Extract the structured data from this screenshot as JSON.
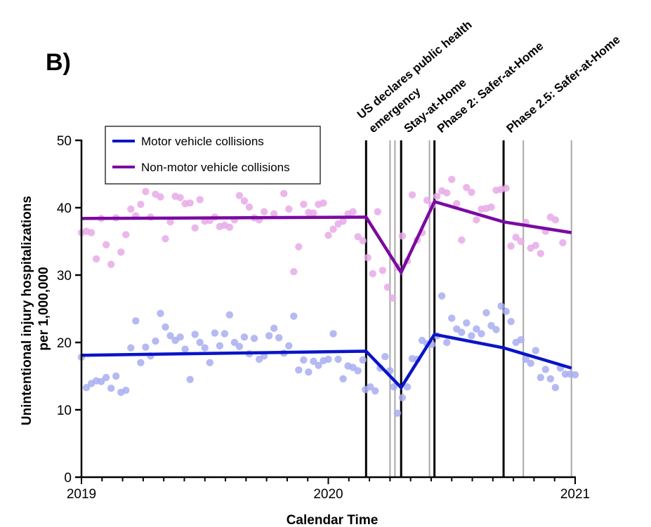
{
  "chart_data": {
    "type": "scatter",
    "panel_label": "B)",
    "title": "",
    "xlabel": "Calendar Time",
    "ylabel_line1": "Unintentional injury hospitalizations",
    "ylabel_line2": "per 1,000,000",
    "xlim": [
      2019.0,
      2021.0
    ],
    "ylim": [
      0,
      50
    ],
    "x_ticks": [
      2019,
      2020,
      2021
    ],
    "x_tick_labels": [
      "2019",
      "2020",
      "2021"
    ],
    "y_ticks": [
      0,
      10,
      20,
      30,
      40,
      50
    ],
    "y_tick_labels": [
      "0",
      "10",
      "20",
      "30",
      "40",
      "50"
    ],
    "grid": false,
    "legend_position": "top-left",
    "event_lines": [
      {
        "x": 2020.153,
        "label_lines": [
          "US declares public health",
          "emergency"
        ],
        "kind": "major"
      },
      {
        "x": 2020.295,
        "label_lines": [
          "Stay-at-Home"
        ],
        "kind": "major"
      },
      {
        "x": 2020.43,
        "label_lines": [
          "Phase 2: Safer-at-Home"
        ],
        "kind": "major"
      },
      {
        "x": 2020.71,
        "label_lines": [
          "Phase 2.5: Safer-at-Home"
        ],
        "kind": "major"
      },
      {
        "x": 2020.25,
        "kind": "minor"
      },
      {
        "x": 2020.27,
        "kind": "minor"
      },
      {
        "x": 2020.41,
        "kind": "minor"
      },
      {
        "x": 2020.79,
        "kind": "minor"
      },
      {
        "x": 2020.985,
        "kind": "minor"
      }
    ],
    "series": [
      {
        "name": "Motor vehicle collisions",
        "color": "#0a14c8",
        "point_color": "#a8aef0",
        "trend": {
          "x": [
            2019.0,
            2020.153,
            2020.295,
            2020.43,
            2020.71,
            2020.985
          ],
          "y": [
            18.1,
            18.7,
            13.3,
            21.2,
            19.2,
            16.2
          ]
        },
        "points": [
          [
            2019.0,
            17.8
          ],
          [
            2019.02,
            13.3
          ],
          [
            2019.04,
            13.9
          ],
          [
            2019.06,
            14.3
          ],
          [
            2019.08,
            14.2
          ],
          [
            2019.1,
            14.8
          ],
          [
            2019.12,
            13.2
          ],
          [
            2019.14,
            15.0
          ],
          [
            2019.16,
            12.6
          ],
          [
            2019.18,
            12.9
          ],
          [
            2019.2,
            19.2
          ],
          [
            2019.22,
            23.2
          ],
          [
            2019.24,
            17.0
          ],
          [
            2019.26,
            19.3
          ],
          [
            2019.28,
            18.0
          ],
          [
            2019.3,
            20.2
          ],
          [
            2019.32,
            24.3
          ],
          [
            2019.34,
            22.3
          ],
          [
            2019.36,
            21.0
          ],
          [
            2019.38,
            20.3
          ],
          [
            2019.4,
            20.8
          ],
          [
            2019.42,
            19.0
          ],
          [
            2019.44,
            14.5
          ],
          [
            2019.46,
            21.2
          ],
          [
            2019.48,
            20.0
          ],
          [
            2019.5,
            19.2
          ],
          [
            2019.52,
            17.0
          ],
          [
            2019.54,
            21.4
          ],
          [
            2019.56,
            19.5
          ],
          [
            2019.58,
            21.3
          ],
          [
            2019.6,
            24.1
          ],
          [
            2019.62,
            20.0
          ],
          [
            2019.64,
            19.4
          ],
          [
            2019.66,
            20.8
          ],
          [
            2019.68,
            18.3
          ],
          [
            2019.7,
            20.6
          ],
          [
            2019.72,
            17.5
          ],
          [
            2019.74,
            18.0
          ],
          [
            2019.76,
            21.0
          ],
          [
            2019.78,
            22.1
          ],
          [
            2019.8,
            20.7
          ],
          [
            2019.82,
            18.4
          ],
          [
            2019.84,
            19.5
          ],
          [
            2019.86,
            23.9
          ],
          [
            2019.88,
            15.9
          ],
          [
            2019.9,
            17.4
          ],
          [
            2019.92,
            15.6
          ],
          [
            2019.94,
            17.2
          ],
          [
            2019.96,
            16.6
          ],
          [
            2019.98,
            17.3
          ],
          [
            2020.0,
            17.5
          ],
          [
            2020.02,
            21.3
          ],
          [
            2020.04,
            17.5
          ],
          [
            2020.06,
            14.6
          ],
          [
            2020.08,
            16.5
          ],
          [
            2020.1,
            16.3
          ],
          [
            2020.12,
            15.8
          ],
          [
            2020.14,
            17.4
          ],
          [
            2020.15,
            13.0
          ],
          [
            2020.17,
            13.4
          ],
          [
            2020.19,
            12.8
          ],
          [
            2020.21,
            16.2
          ],
          [
            2020.23,
            17.9
          ],
          [
            2020.25,
            15.8
          ],
          [
            2020.265,
            13.4
          ],
          [
            2020.28,
            9.5
          ],
          [
            2020.3,
            11.8
          ],
          [
            2020.32,
            13.4
          ],
          [
            2020.34,
            17.6
          ],
          [
            2020.36,
            17.5
          ],
          [
            2020.38,
            20.3
          ],
          [
            2020.4,
            19.8
          ],
          [
            2020.42,
            19.7
          ],
          [
            2020.44,
            21.0
          ],
          [
            2020.46,
            26.9
          ],
          [
            2020.48,
            20.0
          ],
          [
            2020.5,
            23.6
          ],
          [
            2020.52,
            22.0
          ],
          [
            2020.54,
            21.5
          ],
          [
            2020.56,
            22.9
          ],
          [
            2020.58,
            21.0
          ],
          [
            2020.6,
            22.0
          ],
          [
            2020.62,
            21.3
          ],
          [
            2020.64,
            24.4
          ],
          [
            2020.66,
            22.5
          ],
          [
            2020.68,
            21.9
          ],
          [
            2020.7,
            25.4
          ],
          [
            2020.72,
            24.6
          ],
          [
            2020.74,
            23.1
          ],
          [
            2020.76,
            20.0
          ],
          [
            2020.78,
            20.4
          ],
          [
            2020.8,
            17.5
          ],
          [
            2020.82,
            16.9
          ],
          [
            2020.84,
            18.8
          ],
          [
            2020.86,
            14.8
          ],
          [
            2020.88,
            16.0
          ],
          [
            2020.9,
            14.6
          ],
          [
            2020.92,
            13.3
          ],
          [
            2020.94,
            16.2
          ],
          [
            2020.96,
            15.3
          ],
          [
            2020.98,
            15.3
          ],
          [
            2021.0,
            15.2
          ]
        ]
      },
      {
        "name": "Non-motor vehicle collisions",
        "color": "#7a0aa0",
        "point_color": "#e8aae8",
        "trend": {
          "x": [
            2019.0,
            2020.153,
            2020.295,
            2020.43,
            2020.71,
            2020.985
          ],
          "y": [
            38.4,
            38.6,
            30.4,
            40.9,
            37.9,
            36.3
          ]
        },
        "points": [
          [
            2019.0,
            36.3
          ],
          [
            2019.02,
            36.5
          ],
          [
            2019.04,
            36.3
          ],
          [
            2019.06,
            32.4
          ],
          [
            2019.08,
            38.4
          ],
          [
            2019.1,
            34.5
          ],
          [
            2019.12,
            31.6
          ],
          [
            2019.14,
            38.5
          ],
          [
            2019.16,
            33.4
          ],
          [
            2019.18,
            36.0
          ],
          [
            2019.2,
            39.8
          ],
          [
            2019.22,
            38.8
          ],
          [
            2019.24,
            40.5
          ],
          [
            2019.26,
            42.4
          ],
          [
            2019.28,
            38.6
          ],
          [
            2019.3,
            42.0
          ],
          [
            2019.32,
            41.6
          ],
          [
            2019.34,
            35.4
          ],
          [
            2019.36,
            37.9
          ],
          [
            2019.38,
            41.7
          ],
          [
            2019.4,
            41.5
          ],
          [
            2019.42,
            40.6
          ],
          [
            2019.44,
            40.7
          ],
          [
            2019.46,
            37.0
          ],
          [
            2019.48,
            41.2
          ],
          [
            2019.5,
            38.0
          ],
          [
            2019.52,
            38.1
          ],
          [
            2019.54,
            38.6
          ],
          [
            2019.56,
            37.2
          ],
          [
            2019.58,
            37.4
          ],
          [
            2019.6,
            37.1
          ],
          [
            2019.62,
            38.2
          ],
          [
            2019.64,
            41.8
          ],
          [
            2019.66,
            41.0
          ],
          [
            2019.68,
            40.1
          ],
          [
            2019.7,
            38.5
          ],
          [
            2019.72,
            38.2
          ],
          [
            2019.74,
            39.4
          ],
          [
            2019.76,
            44.0
          ],
          [
            2019.78,
            39.1
          ],
          [
            2019.8,
            44.7
          ],
          [
            2019.82,
            42.1
          ],
          [
            2019.84,
            39.8
          ],
          [
            2019.86,
            30.5
          ],
          [
            2019.88,
            34.2
          ],
          [
            2019.9,
            40.5
          ],
          [
            2019.92,
            39.3
          ],
          [
            2019.94,
            39.2
          ],
          [
            2019.96,
            40.5
          ],
          [
            2019.98,
            40.7
          ],
          [
            2020.0,
            35.9
          ],
          [
            2020.02,
            36.8
          ],
          [
            2020.04,
            37.6
          ],
          [
            2020.06,
            38.0
          ],
          [
            2020.08,
            39.1
          ],
          [
            2020.1,
            39.4
          ],
          [
            2020.12,
            35.7
          ],
          [
            2020.14,
            35.1
          ],
          [
            2020.16,
            32.6
          ],
          [
            2020.18,
            30.2
          ],
          [
            2020.2,
            39.4
          ],
          [
            2020.22,
            30.7
          ],
          [
            2020.24,
            28.2
          ],
          [
            2020.26,
            26.6
          ],
          [
            2020.28,
            31.2
          ],
          [
            2020.3,
            35.8
          ],
          [
            2020.32,
            32.1
          ],
          [
            2020.34,
            41.9
          ],
          [
            2020.36,
            35.2
          ],
          [
            2020.38,
            36.3
          ],
          [
            2020.4,
            41.1
          ],
          [
            2020.42,
            40.3
          ],
          [
            2020.44,
            41.7
          ],
          [
            2020.46,
            42.5
          ],
          [
            2020.48,
            42.2
          ],
          [
            2020.5,
            44.2
          ],
          [
            2020.52,
            40.6
          ],
          [
            2020.54,
            35.2
          ],
          [
            2020.56,
            43.0
          ],
          [
            2020.58,
            42.3
          ],
          [
            2020.6,
            38.2
          ],
          [
            2020.62,
            39.8
          ],
          [
            2020.64,
            39.9
          ],
          [
            2020.66,
            40.1
          ],
          [
            2020.68,
            42.6
          ],
          [
            2020.7,
            42.7
          ],
          [
            2020.72,
            42.9
          ],
          [
            2020.74,
            34.3
          ],
          [
            2020.76,
            35.6
          ],
          [
            2020.78,
            35.0
          ],
          [
            2020.8,
            37.8
          ],
          [
            2020.82,
            34.0
          ],
          [
            2020.84,
            34.4
          ],
          [
            2020.86,
            33.2
          ],
          [
            2020.88,
            36.5
          ],
          [
            2020.9,
            38.6
          ],
          [
            2020.92,
            38.2
          ],
          [
            2020.95,
            34.8
          ]
        ]
      }
    ]
  }
}
